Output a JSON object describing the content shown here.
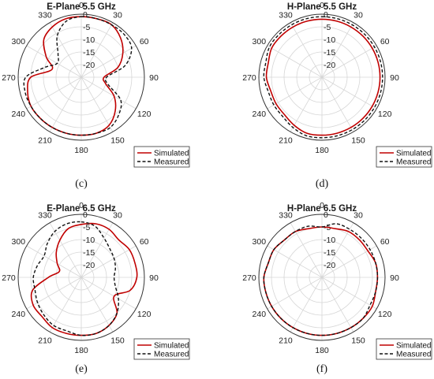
{
  "chart_data": [
    {
      "type": "polar",
      "title": "E-Plane 5.5 GHz",
      "caption": "(c)",
      "angle_labels": [
        "0",
        "30",
        "60",
        "90",
        "120",
        "150",
        "180",
        "210",
        "240",
        "270",
        "300",
        "330"
      ],
      "radial_ticks": [
        "0",
        "-5",
        "-10",
        "-15",
        "-20"
      ],
      "rlim": [
        -25,
        0
      ],
      "angle_direction": "clockwise",
      "angle_zero": "top",
      "grid": true,
      "legend_position": "bottom-right",
      "series": [
        {
          "name": "Simulated",
          "color": "#c00000",
          "style": "solid",
          "angles": [
            0,
            15,
            30,
            45,
            60,
            75,
            90,
            105,
            120,
            135,
            150,
            165,
            180,
            195,
            210,
            225,
            240,
            255,
            270,
            285,
            300,
            315,
            330,
            345,
            360
          ],
          "values": [
            -1,
            -1,
            -1,
            -3,
            -6,
            -10,
            -16,
            -15,
            -10,
            -6,
            -3,
            -2,
            -2,
            -2,
            -2,
            -2,
            -2,
            -3,
            -5,
            -13,
            -9,
            -4,
            -2,
            -1,
            -1
          ]
        },
        {
          "name": "Measured",
          "color": "#111111",
          "style": "dashed",
          "angles": [
            0,
            15,
            30,
            45,
            60,
            75,
            90,
            105,
            120,
            135,
            150,
            165,
            180,
            195,
            210,
            225,
            240,
            255,
            270,
            285,
            300,
            315,
            330,
            345,
            360
          ],
          "values": [
            -1,
            -1,
            -1,
            -1,
            -2,
            -7,
            -15,
            -14,
            -7,
            -4,
            -2,
            -2,
            -2,
            -2,
            -2,
            -2,
            -2,
            -2,
            -3,
            -10,
            -14,
            -12,
            -6,
            -2,
            -1
          ]
        }
      ]
    },
    {
      "type": "polar",
      "title": "H-Plane 5.5 GHz",
      "caption": "(d)",
      "angle_labels": [
        "0",
        "30",
        "60",
        "90",
        "120",
        "150",
        "180",
        "210",
        "240",
        "270",
        "300",
        "330"
      ],
      "radial_ticks": [
        "0",
        "-5",
        "-10",
        "-15",
        "-20"
      ],
      "rlim": [
        -25,
        0
      ],
      "angle_direction": "clockwise",
      "angle_zero": "top",
      "grid": true,
      "legend_position": "bottom-right",
      "series": [
        {
          "name": "Simulated",
          "color": "#c00000",
          "style": "solid",
          "angles": [
            0,
            15,
            30,
            45,
            60,
            75,
            90,
            105,
            120,
            135,
            150,
            165,
            180,
            195,
            210,
            225,
            240,
            255,
            270,
            285,
            300,
            315,
            330,
            345,
            360
          ],
          "values": [
            -2,
            -2,
            -2,
            -2,
            -2,
            -2,
            -2,
            -2,
            -2,
            -2,
            -2,
            -2,
            -2,
            -2,
            -3,
            -4,
            -4,
            -4,
            -3,
            -3,
            -2,
            -2,
            -2,
            -2,
            -2
          ]
        },
        {
          "name": "Measured",
          "color": "#111111",
          "style": "dashed",
          "angles": [
            0,
            15,
            30,
            45,
            60,
            75,
            90,
            105,
            120,
            135,
            150,
            165,
            180,
            195,
            210,
            225,
            240,
            255,
            270,
            285,
            300,
            315,
            330,
            345,
            360
          ],
          "values": [
            -1,
            -1,
            -1,
            -1,
            -1,
            -1,
            -1,
            -1,
            -1,
            -1,
            -1,
            -1,
            -1,
            -1,
            -2,
            -3,
            -3,
            -3,
            -2,
            -2,
            -1,
            -1,
            -1,
            -1,
            -1
          ]
        }
      ]
    },
    {
      "type": "polar",
      "title": "E-Plane 6.5 GHz",
      "caption": "(e)",
      "angle_labels": [
        "0",
        "30",
        "60",
        "90",
        "120",
        "150",
        "180",
        "210",
        "240",
        "270",
        "300",
        "330"
      ],
      "radial_ticks": [
        "0",
        "-5",
        "-10",
        "-15",
        "-20"
      ],
      "rlim": [
        -25,
        0
      ],
      "angle_direction": "clockwise",
      "angle_zero": "top",
      "grid": true,
      "legend_position": "bottom-right",
      "series": [
        {
          "name": "Simulated",
          "color": "#c00000",
          "style": "solid",
          "angles": [
            0,
            15,
            30,
            45,
            60,
            75,
            90,
            105,
            120,
            135,
            150,
            165,
            180,
            195,
            210,
            225,
            240,
            255,
            270,
            285,
            300,
            315,
            330,
            345,
            360
          ],
          "values": [
            -4,
            -3,
            -3,
            -4,
            -3,
            -3,
            -3,
            -5,
            -10,
            -5,
            -3,
            -2,
            -2,
            -2,
            -2,
            -3,
            -3,
            -5,
            -12,
            -16,
            -14,
            -11,
            -8,
            -5,
            -4
          ]
        },
        {
          "name": "Measured",
          "color": "#111111",
          "style": "dashed",
          "angles": [
            0,
            15,
            30,
            45,
            60,
            75,
            90,
            105,
            120,
            135,
            150,
            165,
            180,
            195,
            210,
            225,
            240,
            255,
            270,
            285,
            300,
            315,
            330,
            345,
            360
          ],
          "values": [
            -3,
            -4,
            -7,
            -9,
            -10,
            -11,
            -12,
            -11,
            -8,
            -5,
            -3,
            -2,
            -2,
            -3,
            -3,
            -4,
            -5,
            -6,
            -6,
            -7,
            -8,
            -6,
            -4,
            -3,
            -3
          ]
        }
      ]
    },
    {
      "type": "polar",
      "title": "H-Plane 6.5 GHz",
      "caption": "(f)",
      "angle_labels": [
        "0",
        "30",
        "60",
        "90",
        "120",
        "150",
        "180",
        "210",
        "240",
        "270",
        "300",
        "330"
      ],
      "radial_ticks": [
        "0",
        "-5",
        "-10",
        "-15",
        "-20"
      ],
      "rlim": [
        -25,
        0
      ],
      "angle_direction": "clockwise",
      "angle_zero": "top",
      "grid": true,
      "legend_position": "bottom-right",
      "series": [
        {
          "name": "Simulated",
          "color": "#c00000",
          "style": "solid",
          "angles": [
            0,
            15,
            30,
            45,
            60,
            75,
            90,
            105,
            120,
            135,
            150,
            165,
            180,
            195,
            210,
            225,
            240,
            255,
            270,
            285,
            300,
            315,
            330,
            345,
            360
          ],
          "values": [
            -5,
            -5,
            -4,
            -4,
            -4,
            -3,
            -3,
            -3,
            -2,
            -2,
            -2,
            -2,
            -2,
            -2,
            -2,
            -2,
            -2,
            -2,
            -2,
            -3,
            -3,
            -4,
            -4,
            -5,
            -5
          ]
        },
        {
          "name": "Measured",
          "color": "#111111",
          "style": "dashed",
          "angles": [
            0,
            15,
            30,
            45,
            60,
            75,
            90,
            105,
            120,
            135,
            150,
            165,
            180,
            195,
            210,
            225,
            240,
            255,
            270,
            285,
            300,
            315,
            330,
            345,
            360
          ],
          "values": [
            -5,
            -3,
            -3,
            -3,
            -3,
            -3,
            -3,
            -3,
            -3,
            -2,
            -2,
            -2,
            -2,
            -2,
            -2,
            -2,
            -2,
            -2,
            -2,
            -3,
            -3,
            -4,
            -4,
            -4,
            -5
          ]
        }
      ]
    }
  ]
}
